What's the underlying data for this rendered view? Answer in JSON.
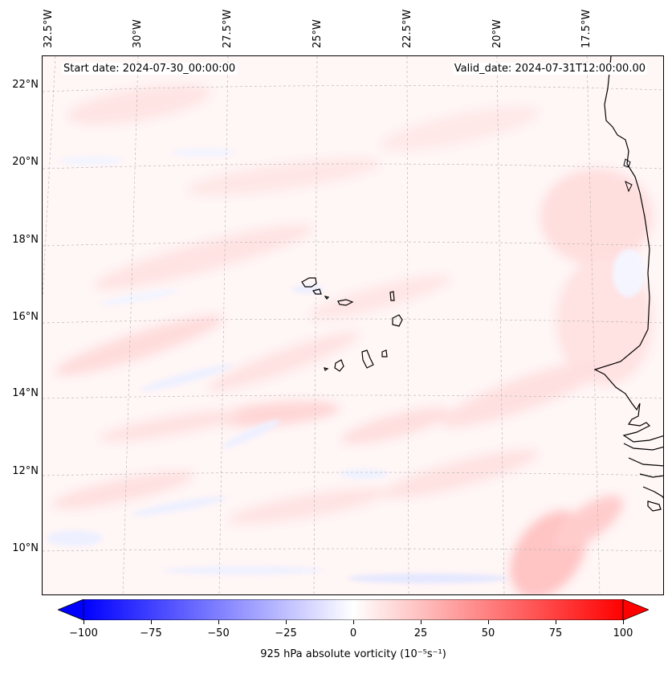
{
  "header": {
    "start_date": "Start date: 2024-07-30_00:00:00",
    "valid_date": "Valid_date: 2024-07-31T12:00:00.00"
  },
  "longitude_labels": [
    "32.5°W",
    "30°W",
    "27.5°W",
    "25°W",
    "22.5°W",
    "20°W",
    "17.5°W"
  ],
  "latitude_labels": [
    "22°N",
    "20°N",
    "18°N",
    "16°N",
    "14°N",
    "12°N",
    "10°N"
  ],
  "colorbar": {
    "label": "925 hPa absolute vorticity (10⁻⁵s⁻¹)",
    "ticks": [
      "−100",
      "−75",
      "−50",
      "−25",
      "0",
      "25",
      "50",
      "75",
      "100"
    ],
    "range": [
      -100,
      100
    ],
    "colormap": "bwr",
    "extend": "both"
  },
  "colors": {
    "negative": "#0000ff",
    "zero": "#ffffff",
    "positive": "#ff0000",
    "coastline": "#000000",
    "gridline": "#b0b0b0"
  }
}
